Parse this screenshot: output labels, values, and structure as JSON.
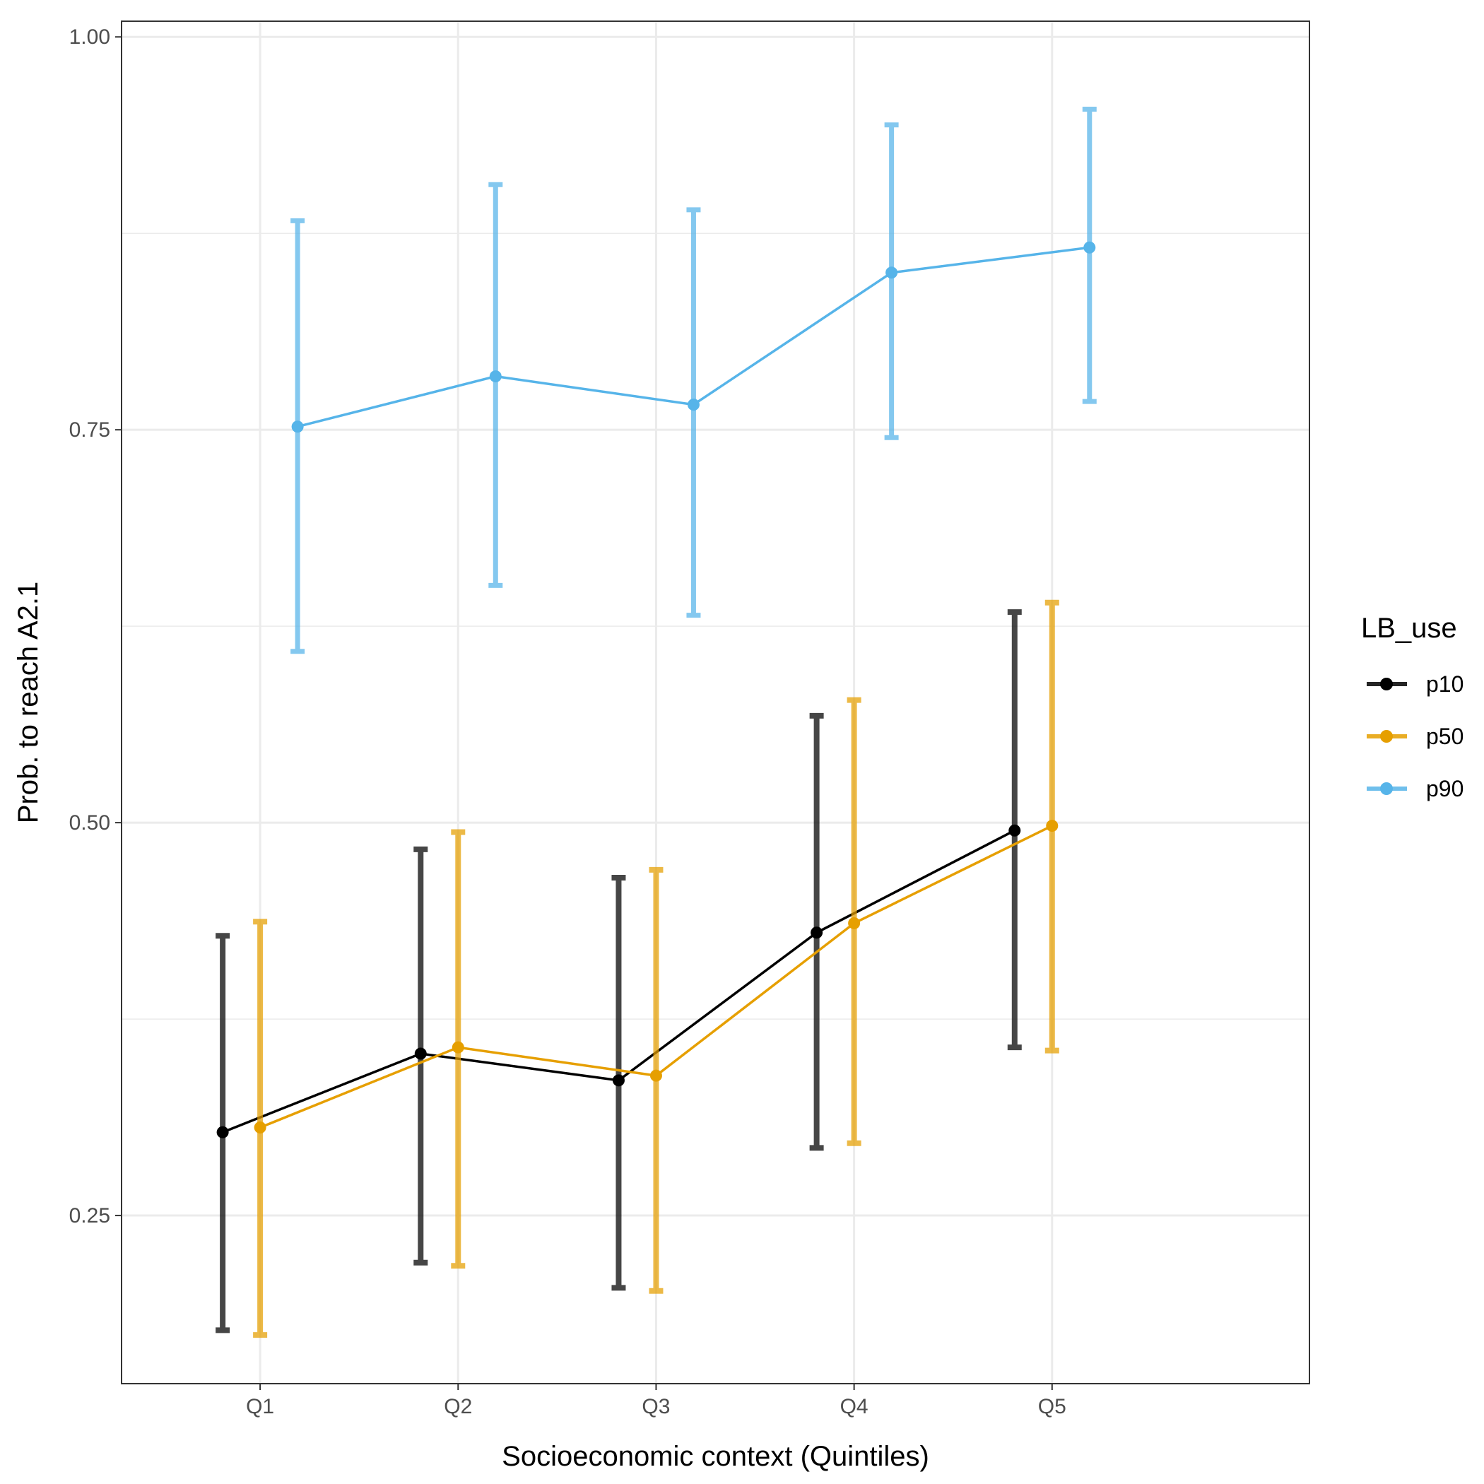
{
  "chart_data": {
    "type": "line",
    "xlabel": "Socioeconomic context (Quintiles)",
    "ylabel": "Prob. to reach A2.1",
    "categories": [
      "Q1",
      "Q2",
      "Q3",
      "Q4",
      "Q5"
    ],
    "ylim": [
      0.143,
      1.01
    ],
    "yticks": [
      0.25,
      0.5,
      0.75,
      1.0
    ],
    "ytick_labels": [
      "0.25",
      "0.50",
      "0.75",
      "1.00"
    ],
    "yminor": [
      0.375,
      0.625,
      0.875
    ],
    "grid": true,
    "legend": {
      "title": "LB_use",
      "position": "right"
    },
    "series": [
      {
        "name": "p10",
        "color": "#000000",
        "values": [
          0.303,
          0.353,
          0.336,
          0.43,
          0.495
        ],
        "lower": [
          0.177,
          0.22,
          0.204,
          0.293,
          0.357
        ],
        "upper": [
          0.428,
          0.483,
          0.465,
          0.568,
          0.634
        ]
      },
      {
        "name": "p50",
        "color": "#E69F00",
        "values": [
          0.306,
          0.357,
          0.339,
          0.436,
          0.498
        ],
        "lower": [
          0.174,
          0.218,
          0.202,
          0.296,
          0.355
        ],
        "upper": [
          0.437,
          0.494,
          0.47,
          0.578,
          0.64
        ]
      },
      {
        "name": "p90",
        "color": "#56B4E9",
        "values": [
          0.752,
          0.784,
          0.766,
          0.85,
          0.866
        ],
        "lower": [
          0.609,
          0.651,
          0.632,
          0.745,
          0.768
        ],
        "upper": [
          0.883,
          0.906,
          0.89,
          0.944,
          0.954
        ]
      }
    ]
  }
}
